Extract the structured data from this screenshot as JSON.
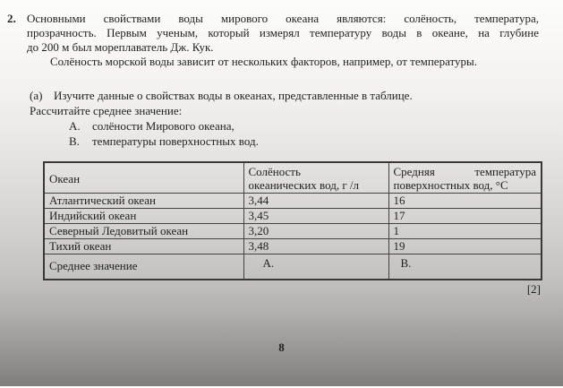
{
  "colors": {
    "ink": "#1f1f1f",
    "table_border": "#424242",
    "page_bottom_gray": "#7f7e7d"
  },
  "question": {
    "number": "2.",
    "paragraph1_lines": [
      "Основными свойствами воды мирового океана являются: солёность, температура,",
      "прозрачность. Первым ученым, который измерял температуру воды в океане, на глубине",
      "до 200 м был мореплаватель Дж. Кук."
    ],
    "paragraph2": "Солёность морской воды зависит от нескольких факторов, например, от температуры."
  },
  "part_a": {
    "label": "(а)",
    "instruction": "Изучите данные о свойствах воды в океанах, представленные в таблице.",
    "instruction2": "Рассчитайте среднее значение:",
    "items": [
      {
        "label": "А.",
        "text": "солёности Мирового океана,"
      },
      {
        "label": "В.",
        "text": "температуры поверхностных вод."
      }
    ]
  },
  "table": {
    "headers": {
      "ocean": "Океан",
      "salinity_line1": "Солёность",
      "salinity_line2": "океанических вод, г /л",
      "temperature_line1": "Средняя температура",
      "temperature_line2": "поверхностных вод, °С"
    },
    "rows": [
      [
        "Атлантический океан",
        "3,44",
        "16"
      ],
      [
        "Индийский океан",
        "3,45",
        "17"
      ],
      [
        "Северный Ледовитый океан",
        "3,20",
        "1"
      ],
      [
        "Тихий океан",
        "3,48",
        "19"
      ]
    ],
    "average_row": [
      "Среднее значение",
      "А.",
      "В."
    ]
  },
  "marks": "[2]",
  "page_number": "8"
}
